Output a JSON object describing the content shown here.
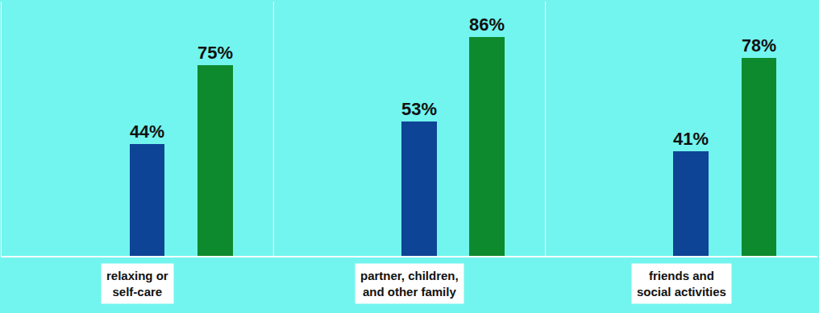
{
  "chart_data": {
    "type": "bar",
    "categories": [
      "relaxing or self-care",
      "partner, children, and other family",
      "friends and social activities"
    ],
    "series": [
      {
        "color": "#0e4496",
        "values": [
          44,
          53,
          41
        ],
        "value_labels": [
          "44%",
          "53%",
          "41%"
        ]
      },
      {
        "color": "#0e8a2e",
        "values": [
          75,
          86,
          78
        ],
        "value_labels": [
          "75%",
          "86%",
          "78%"
        ]
      }
    ],
    "ylim": [
      0,
      100
    ],
    "data_labels": true,
    "tick_labels": false,
    "grid": false
  }
}
